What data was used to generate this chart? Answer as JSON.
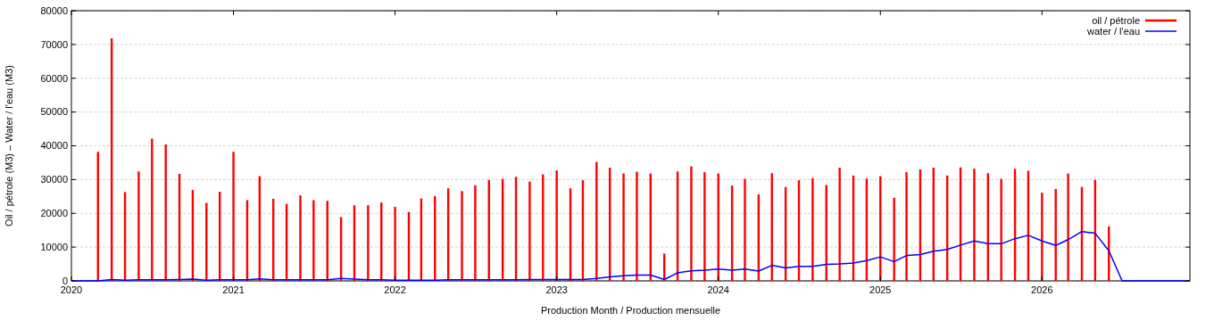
{
  "chart_data": {
    "type": "bar",
    "xlabel": "Production Month / Production mensuelle",
    "ylabel": "Oil / pétrole (M3)  –  Water / l'eau (M3)",
    "xlim": [
      "2020-01-01",
      "2026-12-01"
    ],
    "xticks": [
      {
        "value": "2020-01-01",
        "label": "2020"
      },
      {
        "value": "2021-01-01",
        "label": "2021"
      },
      {
        "value": "2022-01-01",
        "label": "2022"
      },
      {
        "value": "2023-01-01",
        "label": "2023"
      },
      {
        "value": "2024-01-01",
        "label": "2024"
      },
      {
        "value": "2025-01-01",
        "label": "2025"
      },
      {
        "value": "2026-01-01",
        "label": "2026"
      }
    ],
    "ylim": [
      0,
      80000
    ],
    "yticks": [
      0,
      10000,
      20000,
      30000,
      40000,
      50000,
      60000,
      70000,
      80000
    ],
    "grid": "y",
    "legend": "top right",
    "series": [
      {
        "name": "oil / pétrole",
        "color": "#ff0000",
        "x": [
          "2020-03",
          "2020-04",
          "2020-05",
          "2020-06",
          "2020-07",
          "2020-08",
          "2020-09",
          "2020-10",
          "2020-11",
          "2020-12",
          "2021-01",
          "2021-02",
          "2021-03",
          "2021-04",
          "2021-05",
          "2021-06",
          "2021-07",
          "2021-08",
          "2021-09",
          "2021-10",
          "2021-11",
          "2021-12",
          "2022-01",
          "2022-02",
          "2022-03",
          "2022-04",
          "2022-05",
          "2022-06",
          "2022-07",
          "2022-08",
          "2022-09",
          "2022-10",
          "2022-11",
          "2022-12",
          "2023-01",
          "2023-02",
          "2023-03",
          "2023-04",
          "2023-05",
          "2023-06",
          "2023-07",
          "2023-08",
          "2023-09",
          "2023-10",
          "2023-11",
          "2023-12",
          "2024-01",
          "2024-02",
          "2024-03",
          "2024-04",
          "2024-05",
          "2024-06",
          "2024-07",
          "2024-08",
          "2024-09",
          "2024-10",
          "2024-11",
          "2024-12",
          "2025-01",
          "2025-02",
          "2025-03",
          "2025-04",
          "2025-05",
          "2025-06",
          "2025-07",
          "2025-08",
          "2025-09",
          "2025-10",
          "2025-11",
          "2025-12",
          "2026-01",
          "2026-02",
          "2026-03",
          "2026-04",
          "2026-05",
          "2026-06"
        ],
        "values": [
          38200,
          71800,
          26300,
          32400,
          42100,
          40400,
          31700,
          26900,
          23100,
          26400,
          38200,
          23900,
          31000,
          24300,
          22800,
          25300,
          23900,
          23700,
          18900,
          22400,
          22400,
          23200,
          21900,
          20400,
          24400,
          25100,
          27400,
          26600,
          28300,
          29900,
          30200,
          30800,
          29400,
          31500,
          32700,
          27400,
          29800,
          35200,
          33500,
          31800,
          32300,
          31800,
          8100,
          32400,
          33900,
          32200,
          31800,
          28200,
          30200,
          25600,
          31900,
          27800,
          29800,
          30400,
          28400,
          33500,
          31200,
          30300,
          31000,
          24600,
          32200,
          33000,
          33500,
          31200,
          33600,
          33200,
          31900,
          30200,
          33200,
          32600,
          26100,
          27200,
          31800,
          27800,
          29900,
          16100
        ]
      },
      {
        "name": "water / l'eau",
        "type": "line",
        "color": "#0000ff",
        "x": [
          "2020-01",
          "2020-02",
          "2020-03",
          "2020-04",
          "2020-05",
          "2020-06",
          "2020-07",
          "2020-08",
          "2020-09",
          "2020-10",
          "2020-11",
          "2020-12",
          "2021-01",
          "2021-02",
          "2021-03",
          "2021-04",
          "2021-05",
          "2021-06",
          "2021-07",
          "2021-08",
          "2021-09",
          "2021-10",
          "2021-11",
          "2021-12",
          "2022-01",
          "2022-02",
          "2022-03",
          "2022-04",
          "2022-05",
          "2022-06",
          "2022-07",
          "2022-08",
          "2022-09",
          "2022-10",
          "2022-11",
          "2022-12",
          "2023-01",
          "2023-02",
          "2023-03",
          "2023-04",
          "2023-05",
          "2023-06",
          "2023-07",
          "2023-08",
          "2023-09",
          "2023-10",
          "2023-11",
          "2023-12",
          "2024-01",
          "2024-02",
          "2024-03",
          "2024-04",
          "2024-05",
          "2024-06",
          "2024-07",
          "2024-08",
          "2024-09",
          "2024-10",
          "2024-11",
          "2024-12",
          "2025-01",
          "2025-02",
          "2025-03",
          "2025-04",
          "2025-05",
          "2025-06",
          "2025-07",
          "2025-08",
          "2025-09",
          "2025-10",
          "2025-11",
          "2025-12",
          "2026-01",
          "2026-02",
          "2026-03",
          "2026-04",
          "2026-05",
          "2026-06",
          "2026-07",
          "2026-12"
        ],
        "values": [
          0,
          0,
          0,
          400,
          200,
          300,
          300,
          300,
          400,
          500,
          200,
          300,
          300,
          300,
          600,
          300,
          300,
          300,
          300,
          300,
          700,
          500,
          300,
          300,
          200,
          200,
          200,
          200,
          300,
          300,
          300,
          300,
          300,
          300,
          400,
          400,
          400,
          400,
          400,
          700,
          1200,
          1500,
          1700,
          1700,
          400,
          2400,
          3000,
          3200,
          3500,
          3200,
          3500,
          2900,
          4600,
          3800,
          4300,
          4300,
          4900,
          5000,
          5300,
          6000,
          7100,
          5700,
          7500,
          7800,
          8800,
          9300,
          10600,
          11800,
          11000,
          11000,
          12500,
          13500,
          11800,
          10500,
          12200,
          14600,
          14100,
          8900,
          0,
          0
        ]
      }
    ]
  }
}
